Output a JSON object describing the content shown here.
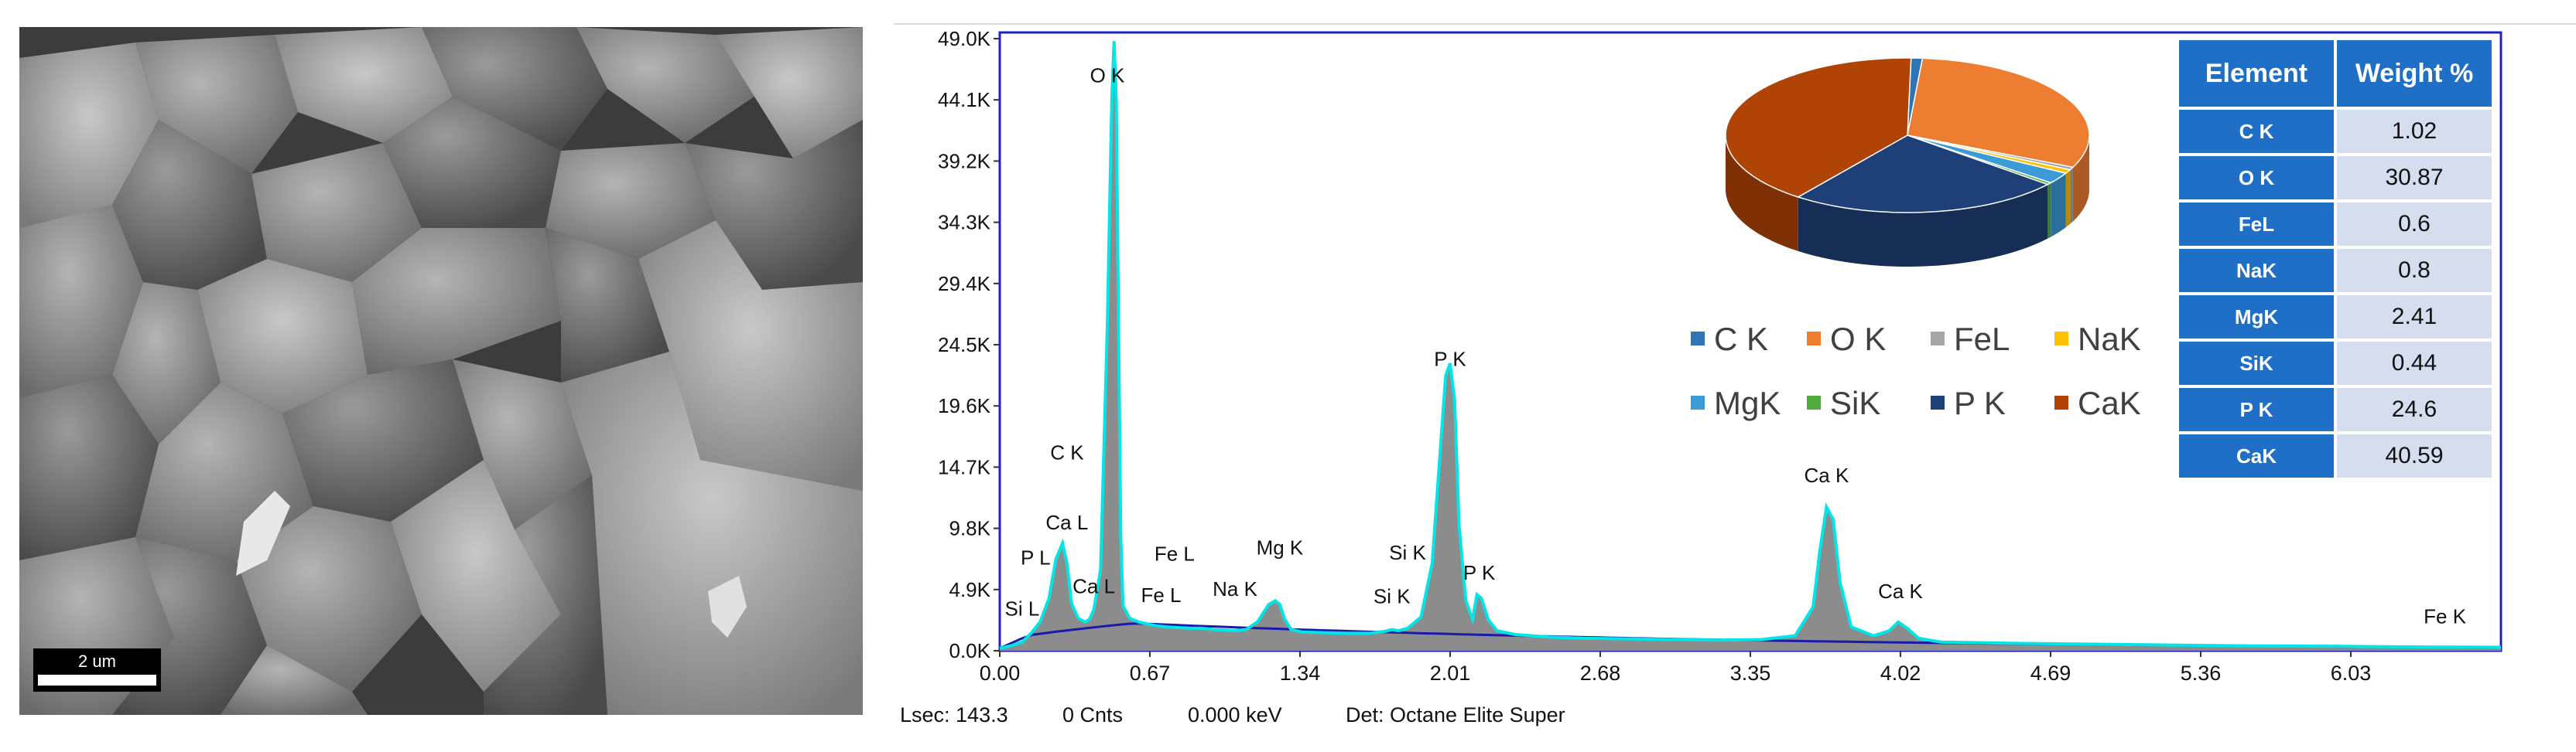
{
  "sem_image": {
    "scale_bar_label": "2 um"
  },
  "chart_data": [
    {
      "type": "area",
      "title": "",
      "xlabel": "",
      "ylabel": "",
      "x_ticks": [
        "0.00",
        "0.67",
        "1.34",
        "2.01",
        "2.68",
        "3.35",
        "4.02",
        "4.69",
        "5.36",
        "6.03"
      ],
      "y_ticks": [
        "0.0K",
        "4.9K",
        "9.8K",
        "14.7K",
        "19.6K",
        "24.5K",
        "29.4K",
        "34.3K",
        "39.2K",
        "44.1K",
        "49.0K"
      ],
      "xlim": [
        0.0,
        6.7
      ],
      "ylim": [
        0,
        49000
      ],
      "series": [
        {
          "x": [
            0.0,
            0.05,
            0.1,
            0.14,
            0.18,
            0.22,
            0.25,
            0.28,
            0.3,
            0.32,
            0.35,
            0.38,
            0.4,
            0.42,
            0.45,
            0.48,
            0.5,
            0.51,
            0.52,
            0.53,
            0.54,
            0.55,
            0.58,
            0.62,
            0.67,
            0.7,
            0.75,
            0.8,
            0.85,
            0.9,
            0.95,
            1.0,
            1.05,
            1.1,
            1.15,
            1.2,
            1.23,
            1.25,
            1.27,
            1.3,
            1.35,
            1.45,
            1.55,
            1.65,
            1.72,
            1.75,
            1.78,
            1.82,
            1.88,
            1.93,
            1.97,
            1.99,
            2.01,
            2.03,
            2.05,
            2.08,
            2.11,
            2.13,
            2.15,
            2.18,
            2.22,
            2.3,
            2.45,
            2.6,
            2.8,
            3.0,
            3.2,
            3.4,
            3.55,
            3.63,
            3.66,
            3.69,
            3.72,
            3.75,
            3.8,
            3.9,
            3.97,
            4.01,
            4.05,
            4.1,
            4.2,
            4.5,
            5.0,
            5.5,
            6.0,
            6.4,
            6.7
          ],
          "values": [
            200,
            400,
            700,
            1400,
            2300,
            4200,
            7300,
            8600,
            7000,
            3800,
            2600,
            2300,
            2500,
            3300,
            6500,
            26000,
            44100,
            48800,
            44000,
            26000,
            9000,
            3600,
            2600,
            2300,
            2100,
            2000,
            1900,
            1850,
            1800,
            1800,
            1700,
            1650,
            1600,
            1700,
            2300,
            3700,
            4000,
            3700,
            2600,
            1700,
            1500,
            1450,
            1400,
            1400,
            1550,
            1700,
            1600,
            1800,
            2700,
            7000,
            17000,
            22000,
            23000,
            20000,
            10000,
            4000,
            2500,
            4500,
            4200,
            2500,
            1600,
            1300,
            1100,
            1000,
            950,
            900,
            850,
            900,
            1200,
            3500,
            8000,
            11500,
            10500,
            5500,
            1900,
            1200,
            1600,
            2300,
            1800,
            1000,
            700,
            600,
            500,
            400,
            350,
            300,
            280
          ]
        }
      ],
      "peak_labels": [
        {
          "text": "O K",
          "x": 0.48,
          "y": 45500
        },
        {
          "text": "C K",
          "x": 0.3,
          "y": 15300
        },
        {
          "text": "Ca L",
          "x": 0.3,
          "y": 9700
        },
        {
          "text": "P L",
          "x": 0.16,
          "y": 6900
        },
        {
          "text": "Si L",
          "x": 0.1,
          "y": 2800
        },
        {
          "text": "Ca L",
          "x": 0.42,
          "y": 4600
        },
        {
          "text": "Fe L",
          "x": 0.78,
          "y": 7200
        },
        {
          "text": "Fe L",
          "x": 0.72,
          "y": 3900
        },
        {
          "text": "Na K",
          "x": 1.05,
          "y": 4400
        },
        {
          "text": "Mg K",
          "x": 1.25,
          "y": 7700
        },
        {
          "text": "Si K",
          "x": 1.82,
          "y": 7300
        },
        {
          "text": "Si K",
          "x": 1.75,
          "y": 3800
        },
        {
          "text": "P K",
          "x": 2.01,
          "y": 22800
        },
        {
          "text": "P K",
          "x": 2.14,
          "y": 5700
        },
        {
          "text": "Ca K",
          "x": 3.69,
          "y": 13500
        },
        {
          "text": "Ca K",
          "x": 4.02,
          "y": 4200
        },
        {
          "text": "Fe K",
          "x": 6.45,
          "y": 2200
        }
      ]
    },
    {
      "type": "pie",
      "title": "",
      "categories": [
        "C K",
        "O K",
        "FeL",
        "NaK",
        "MgK",
        "SiK",
        "P K",
        "CaK"
      ],
      "values": [
        1.02,
        30.87,
        0.6,
        0.8,
        2.41,
        0.44,
        24.6,
        40.59
      ],
      "colors": [
        "#2e75b6",
        "#ed7d31",
        "#a5a5a5",
        "#ffc000",
        "#3a9bd6",
        "#4fad3f",
        "#1e3f78",
        "#b04306"
      ],
      "legend_position": "below"
    },
    {
      "type": "table",
      "columns": [
        "Element",
        "Weight %"
      ],
      "rows": [
        [
          "C K",
          "1.02"
        ],
        [
          "O K",
          "30.87"
        ],
        [
          "FeL",
          "0.6"
        ],
        [
          "NaK",
          "0.8"
        ],
        [
          "MgK",
          "2.41"
        ],
        [
          "SiK",
          "0.44"
        ],
        [
          "P K",
          "24.6"
        ],
        [
          "CaK",
          "40.59"
        ]
      ]
    }
  ],
  "status_bar": {
    "lsec": "Lsec: 143.3",
    "cnts": "0 Cnts",
    "kev": "0.000 keV",
    "det": "Det: Octane Elite Super"
  },
  "colors": {
    "spectrum_fill": "#8c8c8c",
    "spectrum_outline": "#00e5e5",
    "background_curve": "#1a1aaa",
    "plot_border": "#2020c8",
    "table_header": "#1f6fc6",
    "table_value_bg": "#d5deef"
  }
}
